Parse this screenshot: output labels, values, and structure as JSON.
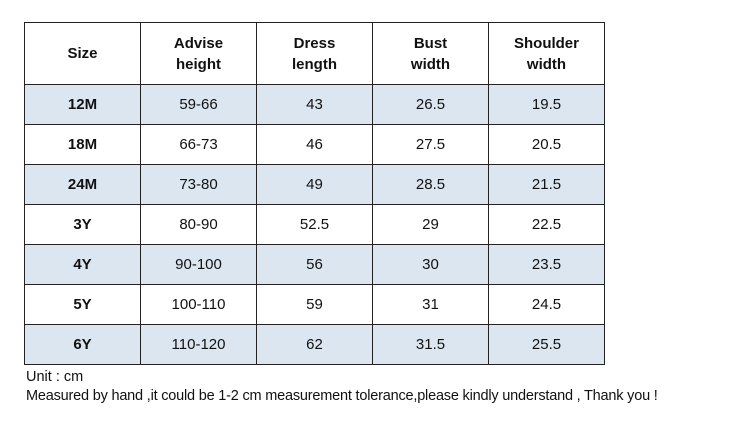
{
  "table": {
    "header": [
      "Size",
      "Advise\nheight",
      "Dress\nlength",
      "Bust\nwidth",
      "Shoulder\nwidth"
    ],
    "rows": [
      [
        "12M",
        "59-66",
        "43",
        "26.5",
        "19.5"
      ],
      [
        "18M",
        "66-73",
        "46",
        "27.5",
        "20.5"
      ],
      [
        "24M",
        "73-80",
        "49",
        "28.5",
        "21.5"
      ],
      [
        "3Y",
        "80-90",
        "52.5",
        "29",
        "22.5"
      ],
      [
        "4Y",
        "90-100",
        "56",
        "30",
        "23.5"
      ],
      [
        "5Y",
        "100-110",
        "59",
        "31",
        "24.5"
      ],
      [
        "6Y",
        "110-120",
        "62",
        "31.5",
        "25.5"
      ]
    ]
  },
  "notes": [
    "Unit : cm",
    "Measured by hand ,it could be 1-2 cm measurement tolerance,please kindly understand , Thank you !"
  ]
}
